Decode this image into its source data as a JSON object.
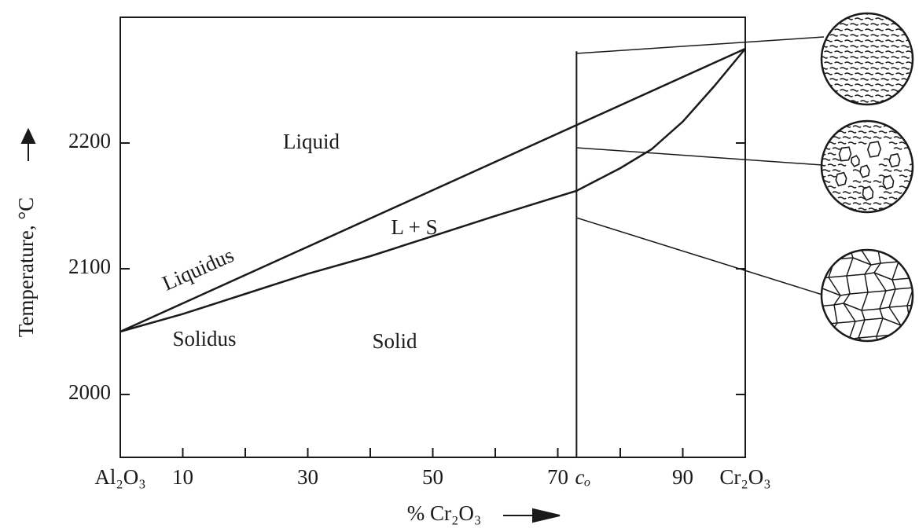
{
  "chart_data": {
    "type": "line",
    "x_label": "% Cr₂O₃",
    "y_label": "Temperature, °C",
    "xlim": [
      0,
      100
    ],
    "ylim": [
      1950,
      2300
    ],
    "xticks": [
      {
        "value": 0,
        "label": "Al₂O₃"
      },
      10,
      30,
      50,
      70,
      {
        "value": 73,
        "label": "cₒ"
      },
      90,
      {
        "value": 100,
        "label": "Cr₂O₃"
      }
    ],
    "xminor_ticks": [
      20,
      40,
      60,
      80
    ],
    "yticks": [
      2000,
      2100,
      2200
    ],
    "series": [
      {
        "name": "Liquidus",
        "color": "#1a1a1a",
        "x": [
          0,
          100
        ],
        "values": [
          2050,
          2275
        ]
      },
      {
        "name": "Solidus",
        "color": "#1a1a1a",
        "x": [
          0,
          10,
          20,
          30,
          40,
          50,
          60,
          73,
          80,
          85,
          90,
          95,
          100
        ],
        "values": [
          2050,
          2064,
          2080,
          2096,
          2110,
          2126,
          2142,
          2162,
          2180,
          2195,
          2217,
          2245,
          2275
        ]
      }
    ],
    "annotations": [
      "Liquid",
      "L + S",
      "Solid"
    ]
  }
}
